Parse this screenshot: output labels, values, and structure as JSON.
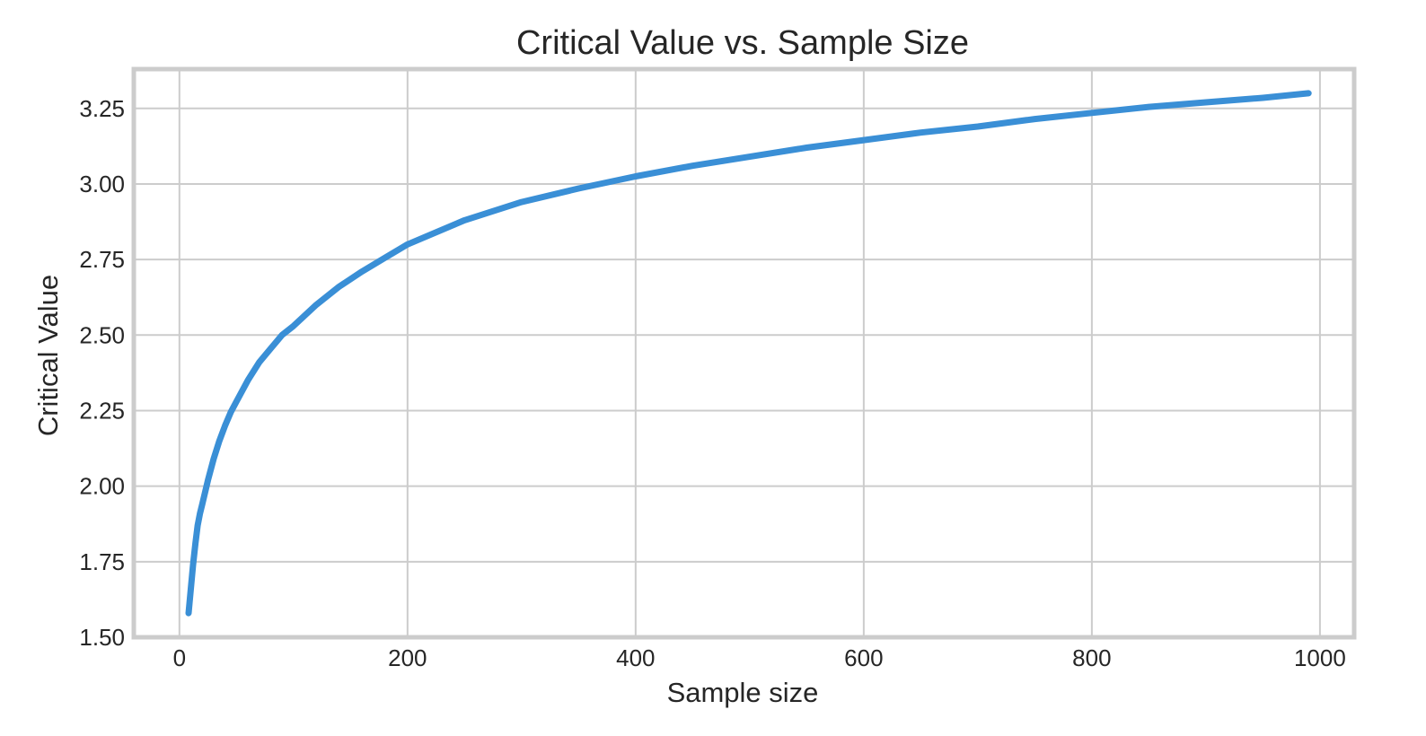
{
  "chart_data": {
    "type": "line",
    "title": "Critical Value vs. Sample Size",
    "xlabel": "Sample size",
    "ylabel": "Critical Value",
    "xlim": [
      -40,
      1030
    ],
    "ylim": [
      1.5,
      3.38
    ],
    "grid": true,
    "legend": "none",
    "x_ticks": [
      0,
      200,
      400,
      600,
      800,
      1000
    ],
    "x_tick_labels": [
      "0",
      "200",
      "400",
      "600",
      "800",
      "1000"
    ],
    "y_ticks": [
      1.5,
      1.75,
      2.0,
      2.25,
      2.5,
      2.75,
      3.0,
      3.25
    ],
    "y_tick_labels": [
      "1.50",
      "1.75",
      "2.00",
      "2.25",
      "2.50",
      "2.75",
      "3.00",
      "3.25"
    ],
    "colors": {
      "line": "#3a8fd6",
      "grid": "#cccccc",
      "frame": "#cccccc",
      "text": "#262626"
    },
    "series": [
      {
        "x": [
          8,
          10,
          12,
          14,
          16,
          18,
          20,
          25,
          30,
          35,
          40,
          45,
          50,
          60,
          70,
          80,
          90,
          100,
          120,
          140,
          160,
          180,
          200,
          250,
          300,
          350,
          400,
          450,
          500,
          550,
          600,
          650,
          700,
          750,
          800,
          850,
          900,
          950,
          990
        ],
        "values": [
          1.58,
          1.66,
          1.74,
          1.81,
          1.87,
          1.91,
          1.94,
          2.02,
          2.09,
          2.15,
          2.2,
          2.245,
          2.28,
          2.35,
          2.41,
          2.455,
          2.5,
          2.53,
          2.6,
          2.66,
          2.71,
          2.755,
          2.8,
          2.88,
          2.94,
          2.985,
          3.025,
          3.06,
          3.09,
          3.12,
          3.145,
          3.17,
          3.19,
          3.215,
          3.235,
          3.255,
          3.27,
          3.285,
          3.3
        ]
      }
    ]
  }
}
